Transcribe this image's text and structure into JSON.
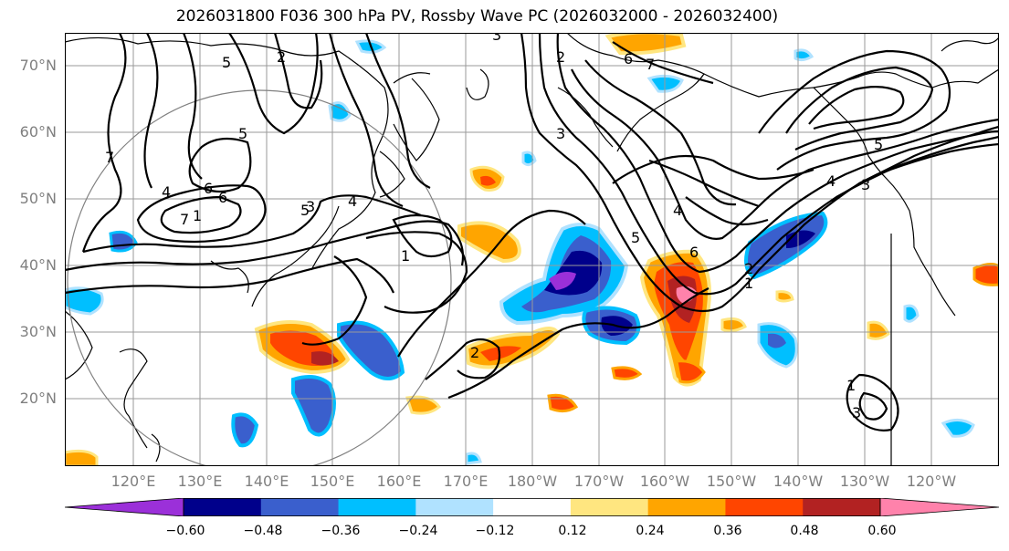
{
  "title": "2026031800 F036 300 hPa PV, Rossby Wave PC (2026032000 - 2026032400)",
  "lat_labels": [
    "70°N",
    "60°N",
    "50°N",
    "40°N",
    "30°N",
    "20°N"
  ],
  "lon_labels": [
    "120°E",
    "130°E",
    "140°E",
    "150°E",
    "160°E",
    "170°E",
    "180°W",
    "170°W",
    "160°W",
    "150°W",
    "140°W",
    "130°W",
    "120°W"
  ],
  "colorbar": {
    "ticks": [
      "−0.60",
      "−0.48",
      "−0.36",
      "−0.24",
      "−0.12",
      "0.12",
      "0.24",
      "0.36",
      "0.48",
      "0.60"
    ],
    "colors": [
      "#9b30d9",
      "#00008b",
      "#3a5fcd",
      "#00bfff",
      "#b0e2ff",
      "#ffffff",
      "#ffe680",
      "#ffa500",
      "#ff4500",
      "#b22222",
      "#ff82ab"
    ]
  },
  "contour_labels": [
    "3",
    "2",
    "5",
    "6",
    "7",
    "4",
    "1",
    "5",
    "6",
    "7",
    "5",
    "2",
    "3",
    "4",
    "1",
    "2",
    "3",
    "4",
    "5",
    "6",
    "1",
    "2",
    "3",
    "4",
    "5",
    "6",
    "7",
    "1",
    "3"
  ]
}
